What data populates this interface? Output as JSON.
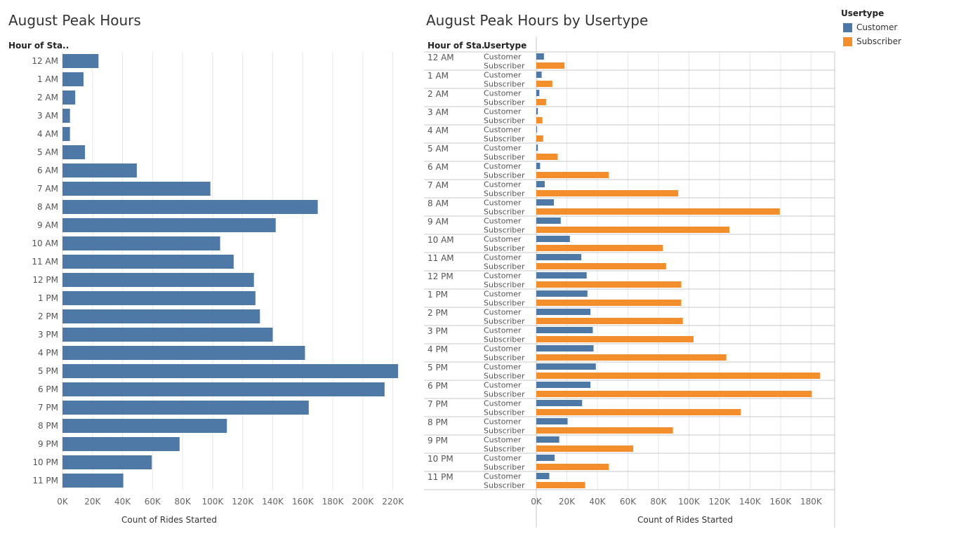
{
  "colors": {
    "customer": "#4e79a7",
    "subscriber": "#f28e2b",
    "grid": "#e6e6e6",
    "rule": "#c8c8c8"
  },
  "legend": {
    "title": "Usertype",
    "items": [
      {
        "label": "Customer",
        "color": "#4e79a7"
      },
      {
        "label": "Subscriber",
        "color": "#f28e2b"
      }
    ]
  },
  "chart_data": [
    {
      "type": "bar",
      "orientation": "horizontal",
      "title": "August Peak Hours",
      "row_header": "Hour of Sta..",
      "xlabel": "Count of Rides Started",
      "xlim": [
        0,
        230000
      ],
      "xticks": [
        0,
        20000,
        40000,
        60000,
        80000,
        100000,
        120000,
        140000,
        160000,
        180000,
        200000,
        220000
      ],
      "xtick_labels": [
        "0K",
        "20K",
        "40K",
        "60K",
        "80K",
        "100K",
        "120K",
        "140K",
        "160K",
        "180K",
        "200K",
        "220K"
      ],
      "grid": true,
      "categories": [
        "12 AM",
        "1 AM",
        "2 AM",
        "3 AM",
        "4 AM",
        "5 AM",
        "6 AM",
        "7 AM",
        "8 AM",
        "9 AM",
        "10 AM",
        "11 AM",
        "12 PM",
        "1 PM",
        "2 PM",
        "3 PM",
        "4 PM",
        "5 PM",
        "6 PM",
        "7 PM",
        "8 PM",
        "9 PM",
        "10 PM",
        "11 PM"
      ],
      "values": [
        24000,
        14000,
        8500,
        5000,
        5000,
        15000,
        49500,
        98500,
        170000,
        142000,
        105000,
        114000,
        127500,
        128500,
        131500,
        140000,
        161500,
        223500,
        214500,
        164000,
        109500,
        78000,
        59500,
        40500
      ]
    },
    {
      "type": "bar",
      "orientation": "horizontal",
      "title": "August Peak Hours by Usertype",
      "row_header": "Hour of Sta..",
      "sub_header": "Usertype",
      "xlabel": "Count of Rides Started",
      "xlim": [
        0,
        195000
      ],
      "xticks": [
        0,
        20000,
        40000,
        60000,
        80000,
        100000,
        120000,
        140000,
        160000,
        180000
      ],
      "xtick_labels": [
        "0K",
        "20K",
        "40K",
        "60K",
        "80K",
        "100K",
        "120K",
        "140K",
        "160K",
        "180K"
      ],
      "grid": true,
      "categories": [
        "12 AM",
        "1 AM",
        "2 AM",
        "3 AM",
        "4 AM",
        "5 AM",
        "6 AM",
        "7 AM",
        "8 AM",
        "9 AM",
        "10 AM",
        "11 AM",
        "12 PM",
        "1 PM",
        "2 PM",
        "3 PM",
        "4 PM",
        "5 PM",
        "6 PM",
        "7 PM",
        "8 PM",
        "9 PM",
        "10 PM",
        "11 PM"
      ],
      "series": [
        {
          "name": "Customer",
          "values": [
            5000,
            3500,
            2000,
            1000,
            500,
            1000,
            2500,
            5500,
            11500,
            16000,
            22000,
            29500,
            33000,
            33500,
            35500,
            37000,
            37500,
            39000,
            35500,
            30000,
            20500,
            15000,
            12000,
            8500
          ]
        },
        {
          "name": "Subscriber",
          "values": [
            18500,
            10500,
            6500,
            4000,
            4500,
            14000,
            47500,
            93000,
            159500,
            126500,
            83000,
            85000,
            95000,
            95000,
            96000,
            103000,
            124500,
            186000,
            180500,
            134000,
            89500,
            63500,
            47500,
            32000
          ]
        }
      ]
    }
  ]
}
